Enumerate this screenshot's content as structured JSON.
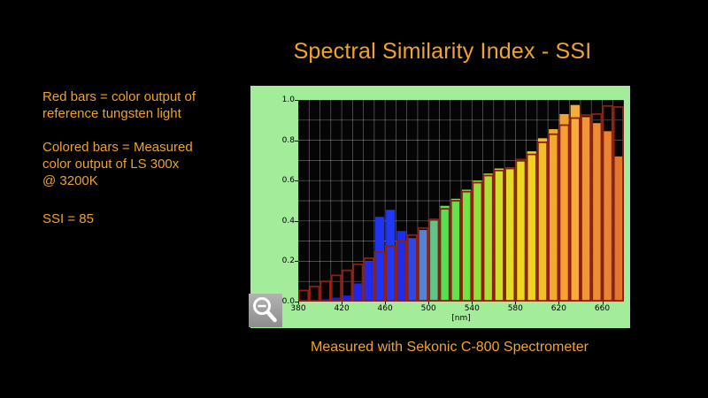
{
  "slide": {
    "title": "Spectral Similarity Index - SSI",
    "caption": "Measured with Sekonic C-800 Spectrometer"
  },
  "annotation": {
    "para1_lines": [
      "Red bars = color output of",
      "reference tungsten light"
    ],
    "para2_lines": [
      "Colored bars = Measured",
      "color output of LS 300x",
      "@ 3200K"
    ],
    "para3_lines": [
      "SSI = 85"
    ],
    "ssi_value": 85
  },
  "colors": {
    "background": "#000000",
    "accent_orange_text": "#f0a42c",
    "panel_green": "#a3ec9a",
    "plot_background": "#050505",
    "gridline": "rgba(255,255,255,0.38)",
    "reference_outline_red": "#8e1c10",
    "zoom_button_gray": "#9d9d9d"
  },
  "chart_data": {
    "type": "bar",
    "title": "Spectral Similarity Index - SSI",
    "xlabel": "[nm]",
    "ylabel": "",
    "xlim": [
      380,
      680
    ],
    "ylim": [
      0,
      1
    ],
    "grid": "on, every 10 nm vertical and 0.1 horizontal",
    "legend_position": "none (explained in left-side annotation)",
    "x_tick_labels": [
      "380",
      "420",
      "460",
      "500",
      "540",
      "580",
      "620",
      "660"
    ],
    "x_tick_values": [
      380,
      420,
      460,
      500,
      540,
      580,
      620,
      660
    ],
    "y_tick_labels": [
      "0.0",
      "0.2",
      "0.4",
      "0.6",
      "0.8",
      "1.0"
    ],
    "y_tick_values": [
      0.0,
      0.2,
      0.4,
      0.6,
      0.8,
      1.0
    ],
    "bin_width_nm": 10,
    "x_bins": [
      380,
      390,
      400,
      410,
      420,
      430,
      440,
      450,
      460,
      470,
      480,
      490,
      500,
      510,
      520,
      530,
      540,
      550,
      560,
      570,
      580,
      590,
      600,
      610,
      620,
      630,
      640,
      650,
      660,
      670
    ],
    "series": [
      {
        "name": "Reference tungsten light (red outline bars)",
        "style": "outline",
        "color": "#8e1c10",
        "values": [
          0.055,
          0.075,
          0.1,
          0.13,
          0.155,
          0.185,
          0.215,
          0.245,
          0.275,
          0.3,
          0.33,
          0.365,
          0.405,
          0.46,
          0.5,
          0.545,
          0.59,
          0.625,
          0.65,
          0.66,
          0.705,
          0.73,
          0.79,
          0.83,
          0.875,
          0.91,
          0.925,
          0.93,
          0.97,
          0.965
        ]
      },
      {
        "name": "Measured output LS 300x @ 3200K (colored bars)",
        "style": "filled",
        "values": [
          0.005,
          0.008,
          0.012,
          0.02,
          0.03,
          0.09,
          0.2,
          0.42,
          0.455,
          0.35,
          0.315,
          0.355,
          0.41,
          0.475,
          0.51,
          0.555,
          0.6,
          0.635,
          0.66,
          0.665,
          0.695,
          0.745,
          0.81,
          0.855,
          0.93,
          0.975,
          0.915,
          0.885,
          0.845,
          0.72
        ],
        "colors": [
          "#10063a",
          "#150d62",
          "#1815a0",
          "#1a1cc8",
          "#1c20e2",
          "#1d26ee",
          "#1e2cf2",
          "#1f33f5",
          "#2037f5",
          "#1f2ce9",
          "#2c49e2",
          "#5583d2",
          "#5fc488",
          "#55e052",
          "#62e24a",
          "#72e344",
          "#8ee23c",
          "#abe135",
          "#cde02c",
          "#dedd24",
          "#ecd81e",
          "#f0d11e",
          "#f2bd25",
          "#f2aa2e",
          "#f4a133",
          "#f6ac3a",
          "#f0953a",
          "#ee8c36",
          "#eb8432",
          "#e2772c"
        ]
      }
    ]
  },
  "zoom_tool": {
    "icon": "magnifier-minus-icon",
    "meaning": "zoom out control"
  }
}
